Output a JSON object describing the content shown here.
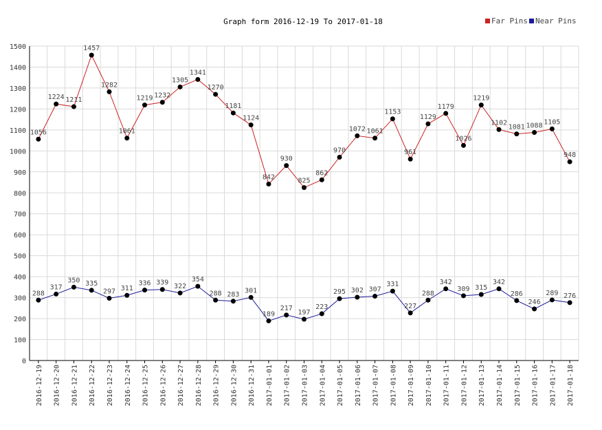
{
  "chart_data": {
    "type": "line",
    "title": "Graph form 2016-12-19 To 2017-01-18",
    "legend_position": "top-right",
    "grid": true,
    "ylim": [
      0,
      1500
    ],
    "yticks": [
      0,
      100,
      200,
      300,
      400,
      500,
      600,
      700,
      800,
      900,
      1000,
      1100,
      1200,
      1300,
      1400,
      1500
    ],
    "categories": [
      "2016-12-19",
      "2016-12-20",
      "2016-12-21",
      "2016-12-22",
      "2016-12-23",
      "2016-12-24",
      "2016-12-25",
      "2016-12-26",
      "2016-12-27",
      "2016-12-28",
      "2016-12-29",
      "2016-12-30",
      "2016-12-31",
      "2017-01-01",
      "2017-01-02",
      "2017-01-03",
      "2017-01-04",
      "2017-01-05",
      "2017-01-06",
      "2017-01-07",
      "2017-01-08",
      "2017-01-09",
      "2017-01-10",
      "2017-01-11",
      "2017-01-12",
      "2017-01-13",
      "2017-01-14",
      "2017-01-15",
      "2017-01-16",
      "2017-01-17",
      "2017-01-18"
    ],
    "series": [
      {
        "name": "Far Pins",
        "color": "#cc2222",
        "values": [
          1056,
          1224,
          1211,
          1457,
          1282,
          1061,
          1219,
          1232,
          1305,
          1341,
          1270,
          1181,
          1124,
          842,
          930,
          825,
          862,
          970,
          1072,
          1061,
          1153,
          961,
          1129,
          1179,
          1026,
          1219,
          1102,
          1081,
          1088,
          1105,
          948
        ]
      },
      {
        "name": "Near Pins",
        "color": "#1a1a99",
        "values": [
          288,
          317,
          350,
          335,
          297,
          311,
          336,
          339,
          322,
          354,
          288,
          283,
          301,
          189,
          217,
          197,
          223,
          295,
          302,
          307,
          331,
          227,
          288,
          342,
          309,
          315,
          342,
          286,
          246,
          289,
          276
        ]
      }
    ]
  }
}
